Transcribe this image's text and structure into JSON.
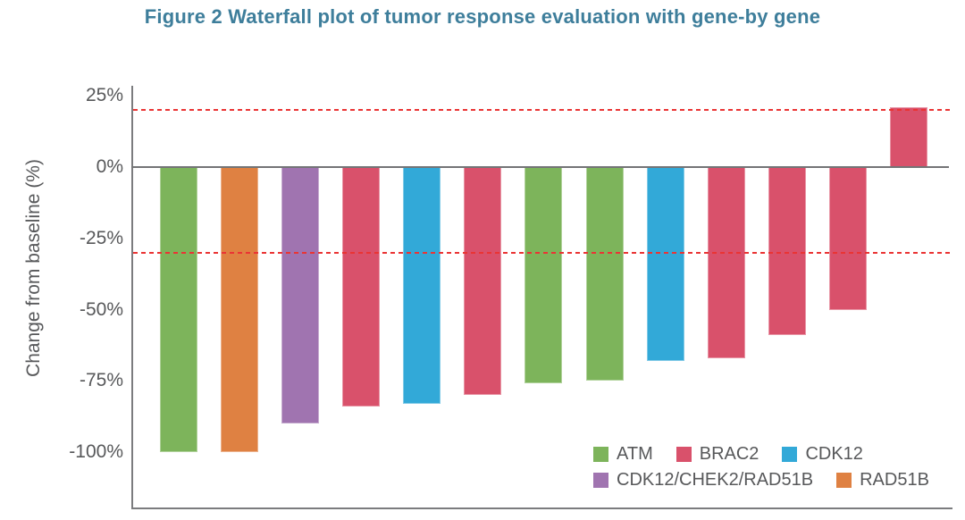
{
  "figure": {
    "title": "Figure 2 Waterfall plot of tumor response evaluation with gene-by gene",
    "title_color": "#3e7e9b",
    "text_color": "#57585a",
    "axis_color": "#7b7c7e"
  },
  "chart_data": {
    "type": "bar",
    "subtype": "waterfall",
    "title": "Figure 2 Waterfall plot of tumor response evaluation with gene-by gene",
    "xlabel": "",
    "ylabel": "Change from baseline (%)",
    "ylim": [
      -105,
      29
    ],
    "grid": false,
    "yticks": [
      {
        "label": "25%",
        "value": 25
      },
      {
        "label": "0%",
        "value": 0
      },
      {
        "label": "-25%",
        "value": -25
      },
      {
        "label": "-50%",
        "value": -50
      },
      {
        "label": "-75%",
        "value": -75
      },
      {
        "label": "-100%",
        "value": -100
      }
    ],
    "reference_lines": [
      {
        "value": 20,
        "style": "dashed",
        "color": "#ea3434"
      },
      {
        "value": -30,
        "style": "dashed",
        "color": "#ea3434"
      }
    ],
    "bars": [
      {
        "gene": "ATM",
        "value": -100
      },
      {
        "gene": "RAD51B",
        "value": -100
      },
      {
        "gene": "CDK12/CHEK2/RAD51B",
        "value": -90
      },
      {
        "gene": "BRAC2",
        "value": -84
      },
      {
        "gene": "CDK12",
        "value": -83
      },
      {
        "gene": "BRAC2",
        "value": -80
      },
      {
        "gene": "ATM",
        "value": -76
      },
      {
        "gene": "ATM",
        "value": -75
      },
      {
        "gene": "CDK12",
        "value": -68
      },
      {
        "gene": "BRAC2",
        "value": -67
      },
      {
        "gene": "BRAC2",
        "value": -59
      },
      {
        "gene": "BRAC2",
        "value": -50
      },
      {
        "gene": "BRAC2",
        "value": 21
      }
    ],
    "gene_colors": {
      "ATM": "#7db45b",
      "BRAC2": "#d9516b",
      "CDK12": "#32a9d8",
      "CDK12/CHEK2/RAD51B": "#a074b0",
      "RAD51B": "#df8142"
    },
    "legend_rows": [
      [
        "ATM",
        "BRAC2",
        "CDK12"
      ],
      [
        "CDK12/CHEK2/RAD51B",
        "RAD51B"
      ]
    ],
    "legend_position": "bottom-right"
  }
}
